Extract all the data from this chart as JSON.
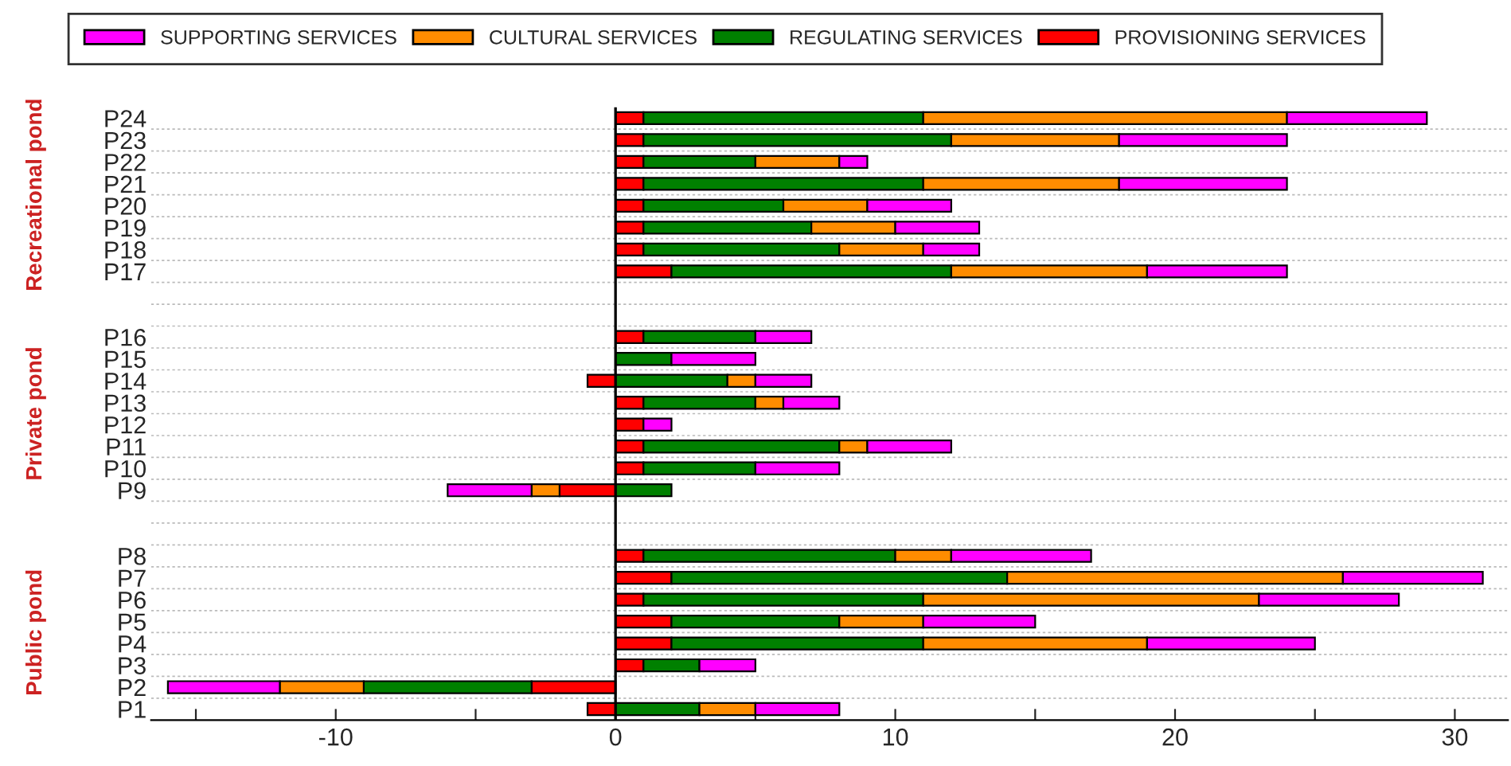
{
  "chart_data": {
    "type": "bar",
    "orientation": "horizontal",
    "stacked": true,
    "categories": [
      "P24",
      "P23",
      "P22",
      "P21",
      "P20",
      "P19",
      "P18",
      "P17",
      null,
      null,
      "P16",
      "P15",
      "P14",
      "P13",
      "P12",
      "P11",
      "P10",
      "P9",
      null,
      null,
      "P8",
      "P7",
      "P6",
      "P5",
      "P4",
      "P3",
      "P2",
      "P1"
    ],
    "series": [
      {
        "name": "PROVISIONING SERVICES",
        "color": "#ff0000",
        "values": [
          1,
          1,
          1,
          1,
          1,
          1,
          1,
          2,
          null,
          null,
          1,
          0,
          -1,
          1,
          1,
          1,
          1,
          -2,
          null,
          null,
          1,
          2,
          1,
          2,
          2,
          1,
          -3,
          -1
        ]
      },
      {
        "name": "REGULATING SERVICES",
        "color": "#008000",
        "values": [
          10,
          11,
          4,
          10,
          5,
          6,
          7,
          10,
          null,
          null,
          4,
          2,
          4,
          4,
          0,
          7,
          4,
          2,
          null,
          null,
          9,
          12,
          10,
          6,
          9,
          2,
          -6,
          3
        ]
      },
      {
        "name": "CULTURAL SERVICES",
        "color": "#ff8c00",
        "values": [
          13,
          6,
          3,
          7,
          3,
          3,
          3,
          7,
          null,
          null,
          0,
          0,
          1,
          1,
          0,
          1,
          0,
          -1,
          null,
          null,
          2,
          12,
          12,
          3,
          8,
          0,
          -3,
          2
        ]
      },
      {
        "name": "SUPPORTING SERVICES",
        "color": "#ff00ff",
        "values": [
          5,
          6,
          1,
          6,
          3,
          3,
          2,
          5,
          null,
          null,
          2,
          3,
          2,
          2,
          1,
          3,
          3,
          -3,
          null,
          null,
          5,
          5,
          5,
          4,
          6,
          2,
          -4,
          3
        ]
      }
    ],
    "xlim": [
      -16.6,
      31.9
    ],
    "xticks": [
      {
        "value": -15,
        "label": null
      },
      -10,
      {
        "value": -5,
        "label": null
      },
      0,
      {
        "value": 5,
        "label": null
      },
      10,
      {
        "value": 15,
        "label": null
      },
      20,
      {
        "value": 25,
        "label": null
      },
      30
    ],
    "ref_lines": [
      {
        "axis": "x",
        "value": 0,
        "color": "#000000"
      }
    ],
    "annotations": [
      "Recreational pond",
      "Private pond",
      "Public pond"
    ],
    "grid": "y",
    "legend": "top"
  }
}
